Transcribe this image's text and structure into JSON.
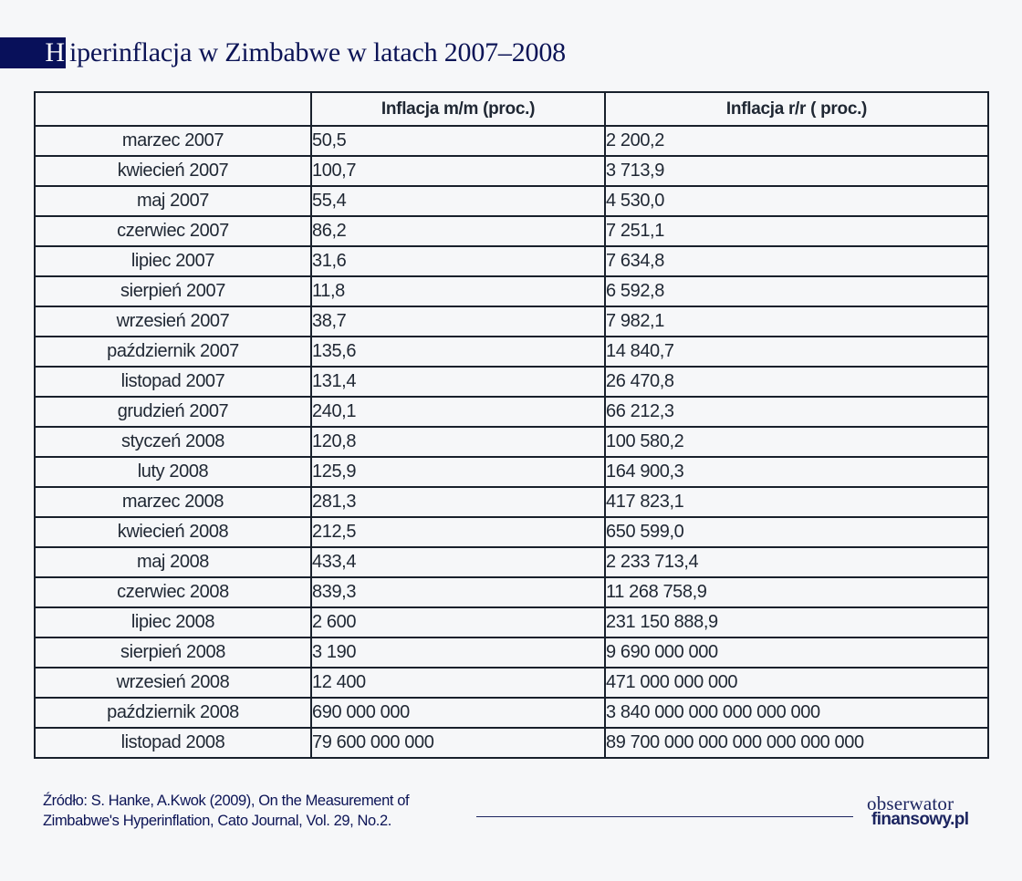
{
  "title": {
    "initial": "H",
    "rest": "iperinflacja w Zimbabwe w latach 2007–2008"
  },
  "table": {
    "headers": [
      "",
      "Inflacja m/m (proc.)",
      "Inflacja r/r ( proc.)"
    ],
    "rows": [
      {
        "month": "marzec 2007",
        "mm": "50,5",
        "rr": "2 200,2"
      },
      {
        "month": "kwiecień 2007",
        "mm": "100,7",
        "rr": "3 713,9"
      },
      {
        "month": "maj 2007",
        "mm": "55,4",
        "rr": "4 530,0"
      },
      {
        "month": "czerwiec 2007",
        "mm": "86,2",
        "rr": "7 251,1"
      },
      {
        "month": "lipiec 2007",
        "mm": "31,6",
        "rr": "7 634,8"
      },
      {
        "month": "sierpień 2007",
        "mm": "11,8",
        "rr": "6 592,8"
      },
      {
        "month": "wrzesień 2007",
        "mm": "38,7",
        "rr": "7 982,1"
      },
      {
        "month": "październik 2007",
        "mm": "135,6",
        "rr": "14 840,7"
      },
      {
        "month": "listopad 2007",
        "mm": "131,4",
        "rr": "26 470,8"
      },
      {
        "month": "grudzień 2007",
        "mm": "240,1",
        "rr": "66 212,3"
      },
      {
        "month": "styczeń 2008",
        "mm": "120,8",
        "rr": "100 580,2"
      },
      {
        "month": "luty 2008",
        "mm": "125,9",
        "rr": "164 900,3"
      },
      {
        "month": "marzec 2008",
        "mm": "281,3",
        "rr": "417 823,1"
      },
      {
        "month": "kwiecień 2008",
        "mm": "212,5",
        "rr": "650 599,0"
      },
      {
        "month": "maj 2008",
        "mm": "433,4",
        "rr": "2 233 713,4"
      },
      {
        "month": "czerwiec 2008",
        "mm": "839,3",
        "rr": "11 268 758,9"
      },
      {
        "month": "lipiec 2008",
        "mm": "2 600",
        "rr": "231 150 888,9"
      },
      {
        "month": "sierpień 2008",
        "mm": "3 190",
        "rr": "9 690 000 000"
      },
      {
        "month": "wrzesień 2008",
        "mm": "12 400",
        "rr": "471 000 000 000"
      },
      {
        "month": "październik 2008",
        "mm": "690 000 000",
        "rr": "3 840 000 000 000 000 000"
      },
      {
        "month": "listopad 2008",
        "mm": "79 600 000 000",
        "rr": "89 700 000 000 000 000 000 000"
      }
    ]
  },
  "footer": {
    "source_line1": "Źródło: S. Hanke, A.Kwok (2009), On the Measurement of",
    "source_line2": "Zimbabwe's Hyperinflation, Cato Journal, Vol. 29, No.2.",
    "logo_top": "obserwator",
    "logo_bottom": "finansowy.pl"
  },
  "colors": {
    "brand_navy": "#08105a",
    "title_text": "#0c1456",
    "border": "#18202c",
    "background": "#f6f7f9"
  }
}
